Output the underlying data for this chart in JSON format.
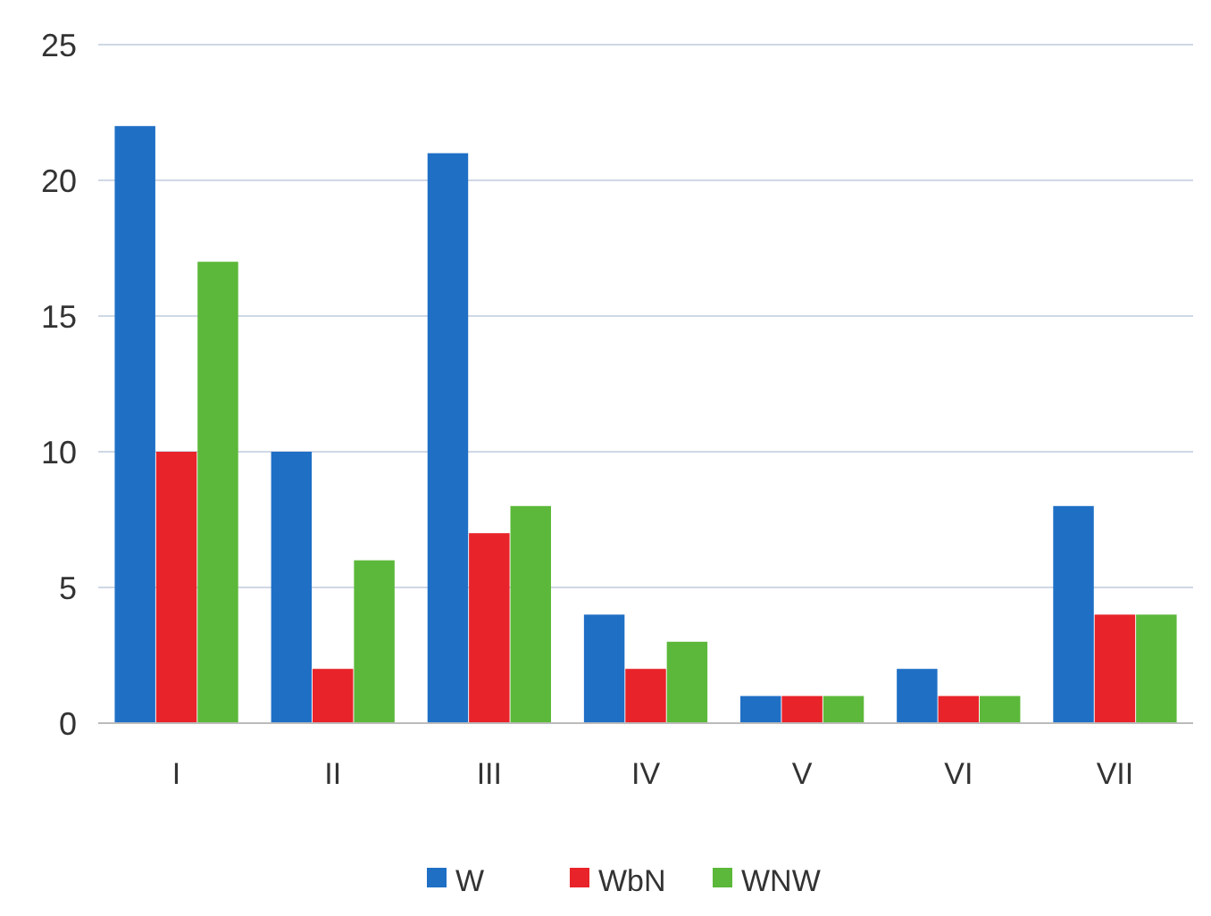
{
  "chart_data": {
    "type": "bar",
    "categories": [
      "I",
      "II",
      "III",
      "IV",
      "V",
      "VI",
      "VII"
    ],
    "series": [
      {
        "name": "W",
        "color": "#1f6fc5",
        "values": [
          22,
          10,
          21,
          4,
          1,
          2,
          8
        ]
      },
      {
        "name": "WbN",
        "color": "#e8232a",
        "values": [
          10,
          2,
          7,
          2,
          1,
          1,
          4
        ]
      },
      {
        "name": "WNW",
        "color": "#5cb83a",
        "values": [
          17,
          6,
          8,
          3,
          1,
          1,
          4
        ]
      }
    ],
    "ylim": [
      0,
      25
    ],
    "yticks": [
      0,
      5,
      10,
      15,
      20,
      25
    ],
    "grid": "y",
    "legend": "bottom"
  }
}
